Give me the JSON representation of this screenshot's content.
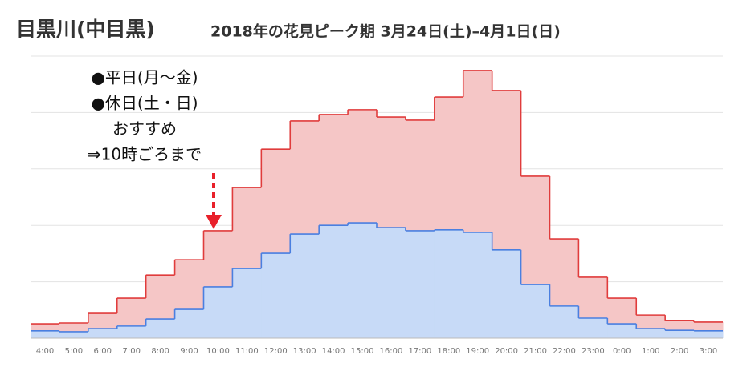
{
  "chart_data": {
    "type": "step-area",
    "title": "目黒川(中目黒)",
    "subtitle": "2018年の花見ピーク期 3月24日(土)–4月1日(日)",
    "annotations": [
      "●平日(月～金)",
      "●休日(土・日)",
      "おすすめ",
      "⇒10時ごろまで"
    ],
    "categories": [
      "4:00",
      "5:00",
      "6:00",
      "7:00",
      "8:00",
      "9:00",
      "10:00",
      "11:00",
      "12:00",
      "13:00",
      "14:00",
      "15:00",
      "16:00",
      "17:00",
      "18:00",
      "19:00",
      "20:00",
      "21:00",
      "22:00",
      "23:00",
      "0:00",
      "1:00",
      "2:00",
      "3:00"
    ],
    "series": [
      {
        "color": "#e03c3c",
        "fill": "#f5c6c6",
        "values": [
          5.1,
          5.4,
          8.8,
          14.2,
          22.4,
          27.8,
          38.1,
          53.4,
          67,
          77,
          79.3,
          81,
          78.4,
          77.3,
          85.5,
          94.9,
          87.8,
          57.4,
          35.2,
          21.6,
          14.2,
          8.2,
          6.3,
          5.7
        ]
      },
      {
        "color": "#4a7fe0",
        "fill": "#c7daf7",
        "values": [
          2.6,
          2.3,
          3.4,
          4.3,
          6.8,
          10.2,
          18.2,
          24.7,
          30.1,
          36.9,
          40,
          40.9,
          39.2,
          38.1,
          38.4,
          37.5,
          31.3,
          19,
          11.4,
          7.1,
          5.1,
          3.4,
          2.8,
          2.6
        ]
      }
    ],
    "ylim": [
      0,
      100
    ],
    "yticks": [
      0,
      20,
      40,
      60,
      80,
      100
    ],
    "grid": true
  }
}
